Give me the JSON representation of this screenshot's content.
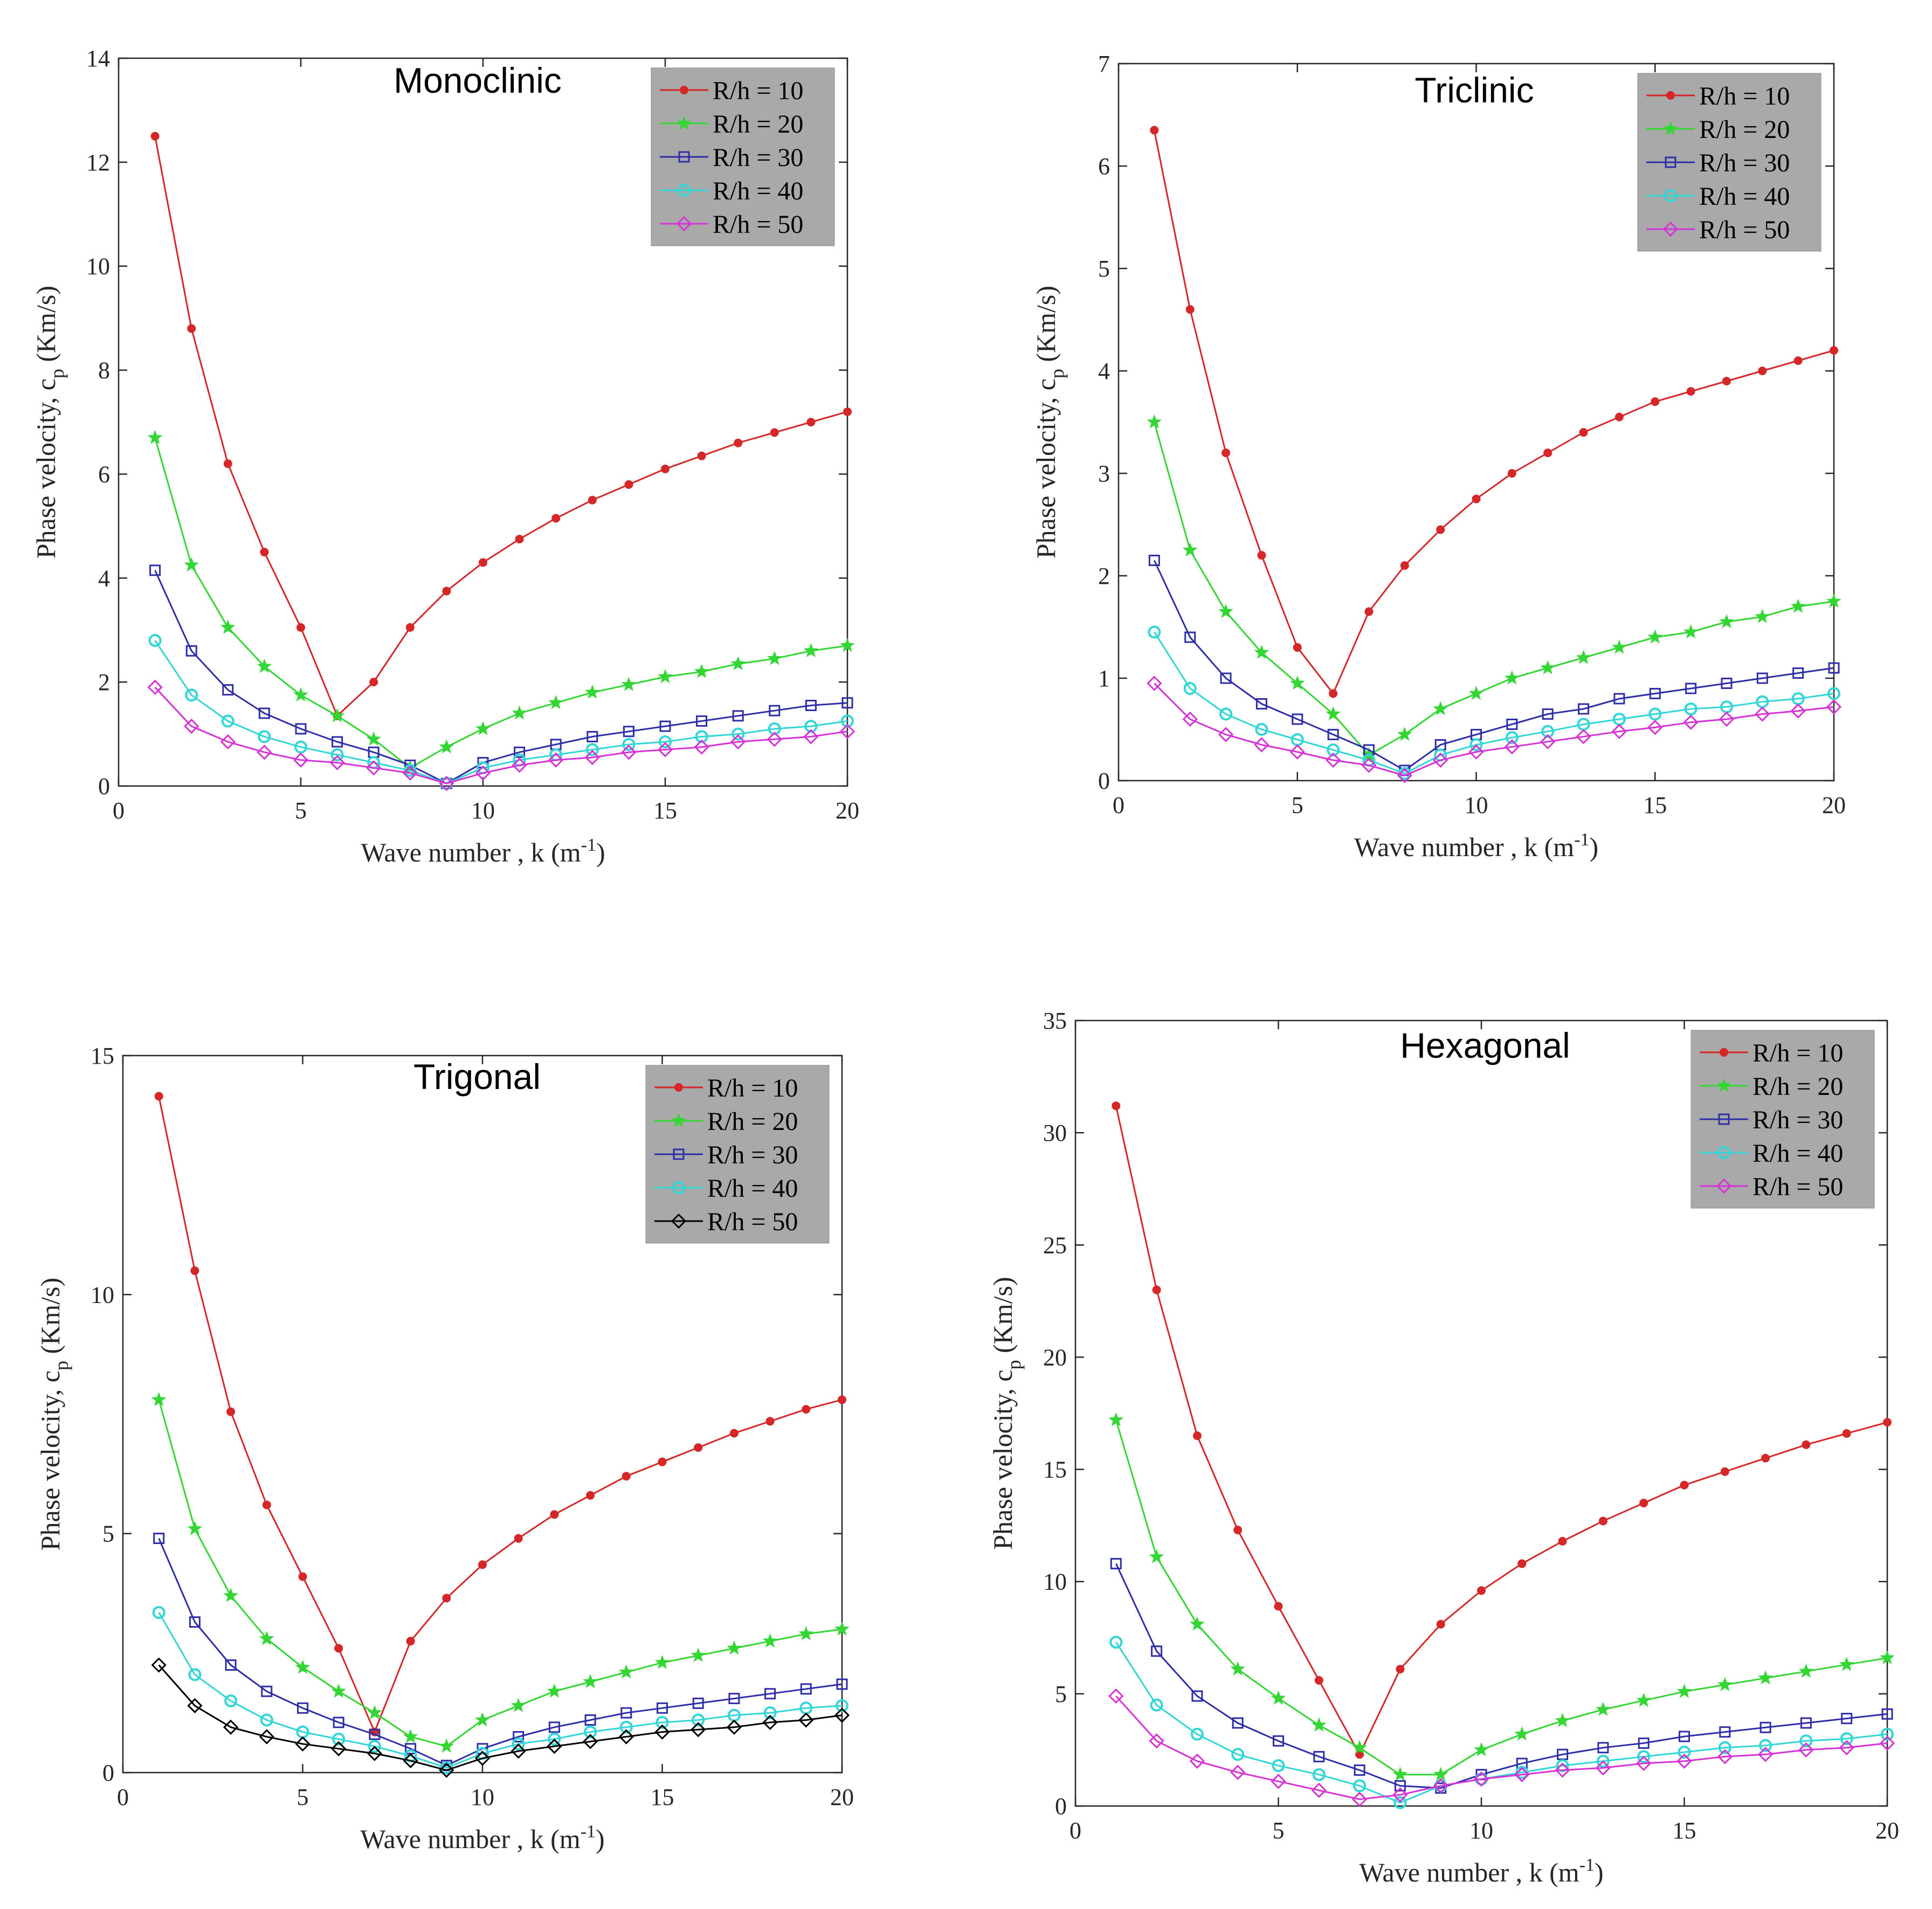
{
  "chart_data": [
    {
      "type": "line",
      "title": "Monoclinic",
      "xlabel": "Wave number , k (m",
      "xlabel_sup": "-1",
      "xlabel_end": ")",
      "ylabel": "Phase velocity, c",
      "ylabel_sub": "p",
      "ylabel_end": " (Km/s)",
      "xlim": [
        0,
        20
      ],
      "ylim": [
        0,
        14
      ],
      "xticks": [
        0,
        5,
        10,
        15,
        20
      ],
      "yticks": [
        0,
        2,
        4,
        6,
        8,
        10,
        12,
        14
      ],
      "legend_position": "top-right",
      "x": [
        1,
        2,
        3,
        4,
        5,
        6,
        7,
        8,
        9,
        10,
        11,
        12,
        13,
        14,
        15,
        16,
        17,
        18,
        19,
        20
      ],
      "series": [
        {
          "name": "R/h = 10",
          "color": "#d62728",
          "marker": "dot",
          "values": [
            12.5,
            8.8,
            6.2,
            4.5,
            3.05,
            1.35,
            2.0,
            3.05,
            3.75,
            4.3,
            4.75,
            5.15,
            5.5,
            5.8,
            6.1,
            6.35,
            6.6,
            6.8,
            7.0,
            7.2
          ]
        },
        {
          "name": "R/h = 20",
          "color": "#33d633",
          "marker": "star",
          "values": [
            6.7,
            4.25,
            3.05,
            2.3,
            1.75,
            1.35,
            0.9,
            0.35,
            0.75,
            1.1,
            1.4,
            1.6,
            1.8,
            1.95,
            2.1,
            2.2,
            2.35,
            2.45,
            2.6,
            2.7
          ]
        },
        {
          "name": "R/h = 30",
          "color": "#2e2ea8",
          "marker": "square",
          "values": [
            4.15,
            2.6,
            1.85,
            1.4,
            1.1,
            0.85,
            0.65,
            0.4,
            0.05,
            0.45,
            0.65,
            0.8,
            0.95,
            1.05,
            1.15,
            1.25,
            1.35,
            1.45,
            1.55,
            1.6
          ]
        },
        {
          "name": "R/h = 40",
          "color": "#33d6d6",
          "marker": "circle",
          "values": [
            2.8,
            1.75,
            1.25,
            0.95,
            0.75,
            0.6,
            0.45,
            0.3,
            0.05,
            0.35,
            0.5,
            0.6,
            0.7,
            0.8,
            0.85,
            0.95,
            1.0,
            1.1,
            1.15,
            1.25
          ]
        },
        {
          "name": "R/h = 50",
          "color": "#d633d6",
          "marker": "diamond",
          "values": [
            1.9,
            1.15,
            0.85,
            0.65,
            0.5,
            0.45,
            0.35,
            0.25,
            0.05,
            0.25,
            0.4,
            0.5,
            0.55,
            0.65,
            0.7,
            0.75,
            0.85,
            0.9,
            0.95,
            1.05
          ]
        }
      ]
    },
    {
      "type": "line",
      "title": "Triclinic",
      "xlabel": "Wave number , k (m",
      "xlabel_sup": "-1",
      "xlabel_end": ")",
      "ylabel": "Phase velocity, c",
      "ylabel_sub": "p",
      "ylabel_end": " (Km/s)",
      "xlim": [
        0,
        20
      ],
      "ylim": [
        0,
        7
      ],
      "xticks": [
        0,
        5,
        10,
        15,
        20
      ],
      "yticks": [
        0,
        1,
        2,
        3,
        4,
        5,
        6,
        7
      ],
      "legend_position": "top-right",
      "x": [
        1,
        2,
        3,
        4,
        5,
        6,
        7,
        8,
        9,
        10,
        11,
        12,
        13,
        14,
        15,
        16,
        17,
        18,
        19,
        20
      ],
      "series": [
        {
          "name": "R/h = 10",
          "color": "#d62728",
          "marker": "dot",
          "values": [
            6.35,
            4.6,
            3.2,
            2.2,
            1.3,
            0.85,
            1.65,
            2.1,
            2.45,
            2.75,
            3.0,
            3.2,
            3.4,
            3.55,
            3.7,
            3.8,
            3.9,
            4.0,
            4.1,
            4.2
          ]
        },
        {
          "name": "R/h = 20",
          "color": "#33d633",
          "marker": "star",
          "values": [
            3.5,
            2.25,
            1.65,
            1.25,
            0.95,
            0.65,
            0.25,
            0.45,
            0.7,
            0.85,
            1.0,
            1.1,
            1.2,
            1.3,
            1.4,
            1.45,
            1.55,
            1.6,
            1.7,
            1.75
          ]
        },
        {
          "name": "R/h = 30",
          "color": "#2e2ea8",
          "marker": "square",
          "values": [
            2.15,
            1.4,
            1.0,
            0.75,
            0.6,
            0.45,
            0.3,
            0.1,
            0.35,
            0.45,
            0.55,
            0.65,
            0.7,
            0.8,
            0.85,
            0.9,
            0.95,
            1.0,
            1.05,
            1.1
          ]
        },
        {
          "name": "R/h = 40",
          "color": "#33d6d6",
          "marker": "circle",
          "values": [
            1.45,
            0.9,
            0.65,
            0.5,
            0.4,
            0.3,
            0.2,
            0.07,
            0.25,
            0.35,
            0.42,
            0.48,
            0.55,
            0.6,
            0.65,
            0.7,
            0.72,
            0.77,
            0.8,
            0.85
          ]
        },
        {
          "name": "R/h = 50",
          "color": "#d633d6",
          "marker": "diamond",
          "values": [
            0.95,
            0.6,
            0.45,
            0.35,
            0.28,
            0.2,
            0.15,
            0.05,
            0.2,
            0.28,
            0.33,
            0.38,
            0.43,
            0.48,
            0.52,
            0.57,
            0.6,
            0.65,
            0.68,
            0.72
          ]
        }
      ]
    },
    {
      "type": "line",
      "title": "Trigonal",
      "xlabel": "Wave number , k (m",
      "xlabel_sup": "-1",
      "xlabel_end": ")",
      "ylabel": "Phase velocity, c",
      "ylabel_sub": "p",
      "ylabel_end": " (Km/s)",
      "xlim": [
        0,
        20
      ],
      "ylim": [
        0,
        15
      ],
      "xticks": [
        0,
        5,
        10,
        15,
        20
      ],
      "yticks": [
        0,
        5,
        10,
        15
      ],
      "legend_position": "top-right",
      "x": [
        1,
        2,
        3,
        4,
        5,
        6,
        7,
        8,
        9,
        10,
        11,
        12,
        13,
        14,
        15,
        16,
        17,
        18,
        19,
        20
      ],
      "series": [
        {
          "name": "R/h = 10",
          "color": "#d62728",
          "marker": "dot",
          "values": [
            14.15,
            10.5,
            7.55,
            5.6,
            4.1,
            2.6,
            0.85,
            2.75,
            3.65,
            4.35,
            4.9,
            5.4,
            5.8,
            6.2,
            6.5,
            6.8,
            7.1,
            7.35,
            7.6,
            7.8
          ]
        },
        {
          "name": "R/h = 20",
          "color": "#33d633",
          "marker": "star",
          "values": [
            7.8,
            5.1,
            3.7,
            2.8,
            2.2,
            1.7,
            1.25,
            0.75,
            0.55,
            1.1,
            1.4,
            1.7,
            1.9,
            2.1,
            2.3,
            2.45,
            2.6,
            2.75,
            2.9,
            3.0
          ]
        },
        {
          "name": "R/h = 30",
          "color": "#2e2ea8",
          "marker": "square",
          "values": [
            4.9,
            3.15,
            2.25,
            1.7,
            1.35,
            1.05,
            0.8,
            0.5,
            0.15,
            0.5,
            0.75,
            0.95,
            1.1,
            1.25,
            1.35,
            1.45,
            1.55,
            1.65,
            1.75,
            1.85
          ]
        },
        {
          "name": "R/h = 40",
          "color": "#33d6d6",
          "marker": "circle",
          "values": [
            3.35,
            2.05,
            1.5,
            1.1,
            0.85,
            0.7,
            0.55,
            0.35,
            0.1,
            0.4,
            0.6,
            0.7,
            0.85,
            0.95,
            1.05,
            1.1,
            1.2,
            1.25,
            1.35,
            1.4
          ]
        },
        {
          "name": "R/h = 50",
          "color": "#000000",
          "marker": "diamond",
          "values": [
            2.25,
            1.4,
            0.95,
            0.75,
            0.6,
            0.5,
            0.4,
            0.25,
            0.05,
            0.3,
            0.45,
            0.55,
            0.65,
            0.75,
            0.85,
            0.9,
            0.95,
            1.05,
            1.1,
            1.2
          ]
        }
      ]
    },
    {
      "type": "line",
      "title": "Hexagonal",
      "xlabel": "Wave number , k (m",
      "xlabel_sup": "-1",
      "xlabel_end": ")",
      "ylabel": "Phase velocity, c",
      "ylabel_sub": "p",
      "ylabel_end": " (Km/s)",
      "xlim": [
        0,
        20
      ],
      "ylim": [
        0,
        35
      ],
      "xticks": [
        0,
        5,
        10,
        15,
        20
      ],
      "yticks": [
        0,
        5,
        10,
        15,
        20,
        25,
        30,
        35
      ],
      "legend_position": "top-right",
      "x": [
        1,
        2,
        3,
        4,
        5,
        6,
        7,
        8,
        9,
        10,
        11,
        12,
        13,
        14,
        15,
        16,
        17,
        18,
        19,
        20
      ],
      "series": [
        {
          "name": "R/h = 10",
          "color": "#d62728",
          "marker": "dot",
          "values": [
            31.2,
            23.0,
            16.5,
            12.3,
            8.9,
            5.6,
            2.3,
            6.1,
            8.1,
            9.6,
            10.8,
            11.8,
            12.7,
            13.5,
            14.3,
            14.9,
            15.5,
            16.1,
            16.6,
            17.1
          ]
        },
        {
          "name": "R/h = 20",
          "color": "#33d633",
          "marker": "star",
          "values": [
            17.2,
            11.1,
            8.1,
            6.1,
            4.8,
            3.6,
            2.6,
            1.4,
            1.4,
            2.5,
            3.2,
            3.8,
            4.3,
            4.7,
            5.1,
            5.4,
            5.7,
            6.0,
            6.3,
            6.6
          ]
        },
        {
          "name": "R/h = 30",
          "color": "#2e2ea8",
          "marker": "square",
          "values": [
            10.8,
            6.9,
            4.9,
            3.7,
            2.9,
            2.2,
            1.6,
            0.9,
            0.8,
            1.4,
            1.9,
            2.3,
            2.6,
            2.8,
            3.1,
            3.3,
            3.5,
            3.7,
            3.9,
            4.1
          ]
        },
        {
          "name": "R/h = 40",
          "color": "#33d6d6",
          "marker": "circle",
          "values": [
            7.3,
            4.5,
            3.2,
            2.3,
            1.8,
            1.4,
            0.9,
            0.15,
            0.9,
            1.2,
            1.5,
            1.8,
            2.0,
            2.2,
            2.4,
            2.6,
            2.7,
            2.9,
            3.0,
            3.2
          ]
        },
        {
          "name": "R/h = 50",
          "color": "#d633d6",
          "marker": "diamond",
          "values": [
            4.9,
            2.9,
            2.0,
            1.5,
            1.1,
            0.7,
            0.3,
            0.5,
            0.9,
            1.2,
            1.4,
            1.6,
            1.7,
            1.9,
            2.0,
            2.2,
            2.3,
            2.5,
            2.6,
            2.8
          ]
        }
      ]
    }
  ]
}
